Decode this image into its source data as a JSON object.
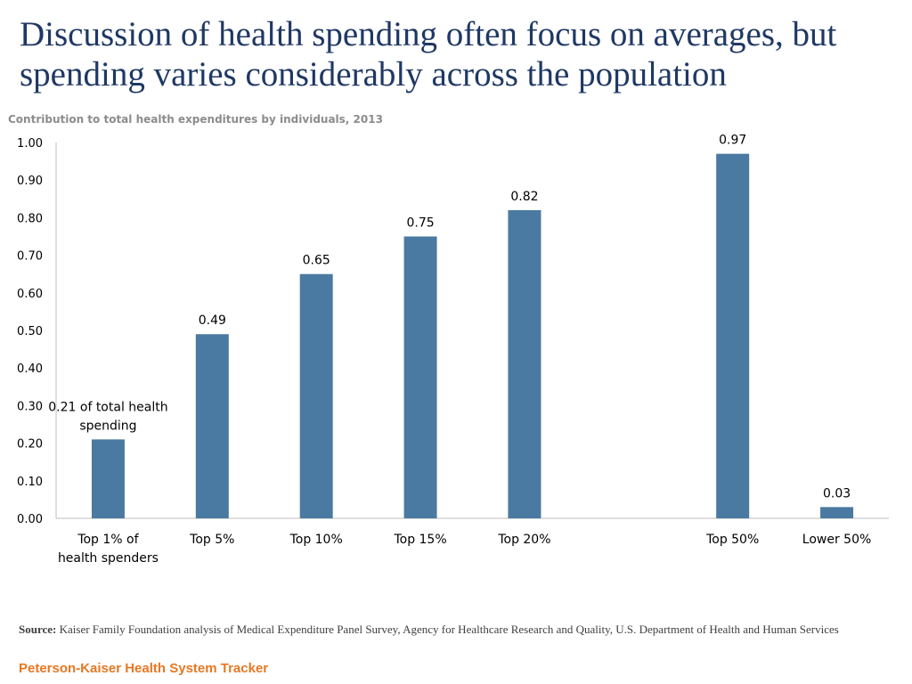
{
  "title": "Discussion of health spending often focus on averages, but spending varies considerably across the population",
  "source_label": "Source:",
  "source_text": "Kaiser Family Foundation analysis of Medical Expenditure Panel Survey, Agency for Healthcare Research and Quality, U.S. Department of Health and Human Services",
  "brand": "Peterson-Kaiser Health System Tracker",
  "colors": {
    "bar": "#4a7aa1",
    "title": "#1f3864",
    "brand": "#e87722"
  },
  "chart_data": {
    "type": "bar",
    "title": "Contribution to total health expenditures by individuals, 2013",
    "xlabel": "",
    "ylabel": "",
    "ylim": [
      0,
      1.0
    ],
    "yticks": [
      "0.00",
      "0.10",
      "0.20",
      "0.30",
      "0.40",
      "0.50",
      "0.60",
      "0.70",
      "0.80",
      "0.90",
      "1.00"
    ],
    "grid": false,
    "categories": [
      [
        "Top 1% of",
        "health spenders"
      ],
      [
        "Top 5%"
      ],
      [
        "Top 10%"
      ],
      [
        "Top 15%"
      ],
      [
        "Top 20%"
      ],
      [
        ""
      ],
      [
        "Top 50%"
      ],
      [
        "Lower 50%"
      ]
    ],
    "values": [
      0.21,
      0.49,
      0.65,
      0.75,
      0.82,
      null,
      0.97,
      0.03
    ],
    "data_labels": [
      [
        "0.21 of total health",
        "spending"
      ],
      [
        "0.49"
      ],
      [
        "0.65"
      ],
      [
        "0.75"
      ],
      [
        "0.82"
      ],
      [
        ""
      ],
      [
        "0.97"
      ],
      [
        "0.03"
      ]
    ]
  }
}
